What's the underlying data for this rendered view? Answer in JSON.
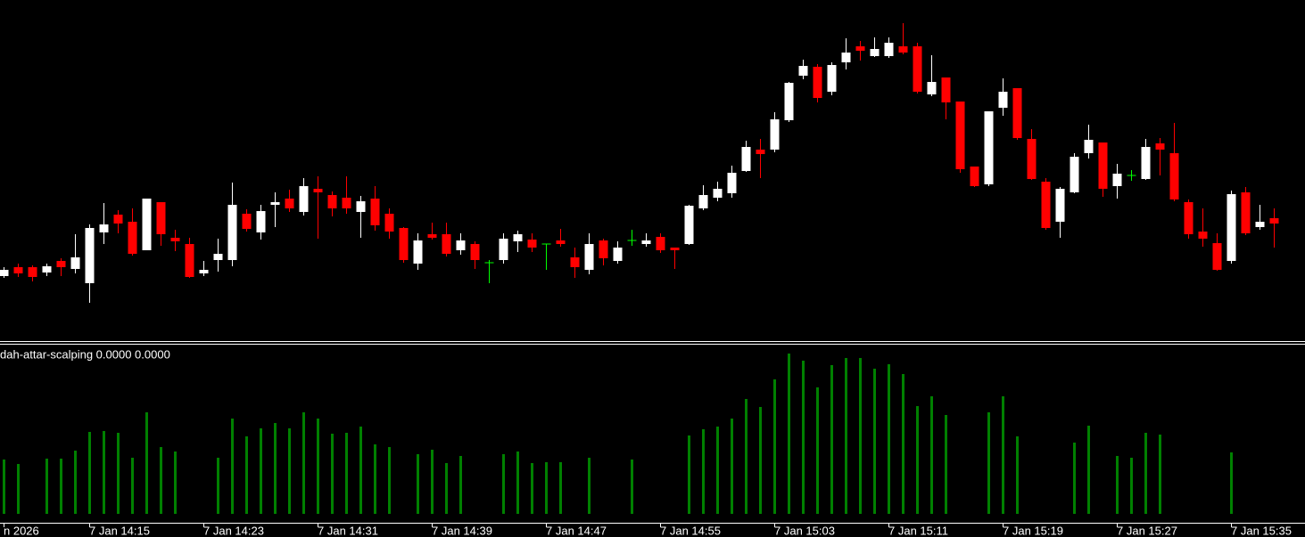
{
  "chart_data": [
    {
      "type": "candlestick",
      "categories": [
        "n 2026",
        null,
        null,
        null,
        null,
        null,
        "7 Jan 14:15",
        null,
        null,
        null,
        null,
        null,
        null,
        null,
        "7 Jan 14:23",
        null,
        null,
        null,
        null,
        null,
        null,
        null,
        "7 Jan 14:31",
        null,
        null,
        null,
        null,
        null,
        null,
        null,
        "7 Jan 14:39",
        null,
        null,
        null,
        null,
        null,
        null,
        null,
        "7 Jan 14:47",
        null,
        null,
        null,
        null,
        null,
        null,
        null,
        "7 Jan 14:55",
        null,
        null,
        null,
        null,
        null,
        null,
        null,
        "7 Jan 15:03",
        null,
        null,
        null,
        null,
        null,
        null,
        null,
        "7 Jan 15:11",
        null,
        null,
        null,
        null,
        null,
        null,
        null,
        "7 Jan 15:19",
        null,
        null,
        null,
        null,
        null,
        null,
        null,
        "7 Jan 15:27",
        null,
        null,
        null,
        null,
        null,
        null,
        null,
        "7 Jan 15:35",
        null,
        null,
        null
      ],
      "open": [
        90,
        100,
        100,
        94,
        107,
        98,
        82,
        139,
        159,
        151,
        119,
        173,
        133,
        126,
        93,
        108,
        108,
        160,
        139,
        170,
        177,
        162,
        188,
        181,
        178,
        162,
        177,
        160,
        144,
        104,
        137,
        137,
        119,
        126,
        105,
        108,
        129,
        131,
        126,
        130,
        111,
        97,
        130,
        107,
        130,
        126,
        134,
        122,
        126,
        166,
        178,
        183,
        208,
        232,
        232,
        265,
        315,
        325,
        297,
        330,
        348,
        337,
        337,
        348,
        348,
        294,
        313,
        286,
        213,
        193,
        279,
        301,
        244,
        196,
        151,
        184,
        228,
        240,
        191,
        203,
        199,
        239,
        228,
        173,
        140,
        127,
        107,
        184,
        145,
        155
      ],
      "high": [
        100,
        104,
        102,
        104,
        110,
        137,
        148,
        172,
        164,
        166,
        177,
        173,
        142,
        133,
        107,
        132,
        195,
        165,
        170,
        184,
        187,
        200,
        202,
        185,
        202,
        180,
        191,
        166,
        145,
        138,
        150,
        150,
        138,
        129,
        108,
        138,
        141,
        138,
        126,
        143,
        122,
        138,
        132,
        129,
        142,
        138,
        138,
        122,
        170,
        192,
        196,
        214,
        242,
        244,
        274,
        308,
        333,
        328,
        330,
        357,
        354,
        358,
        358,
        374,
        352,
        338,
        313,
        286,
        213,
        275,
        312,
        301,
        255,
        200,
        190,
        228,
        260,
        240,
        216,
        209,
        244,
        245,
        262,
        176,
        166,
        138,
        186,
        190,
        170,
        166
      ],
      "low": [
        88,
        89,
        84,
        90,
        90,
        93,
        60,
        126,
        138,
        113,
        119,
        124,
        118,
        88,
        90,
        95,
        101,
        140,
        131,
        145,
        162,
        158,
        132,
        157,
        160,
        133,
        141,
        132,
        105,
        97,
        131,
        112,
        114,
        98,
        82,
        104,
        117,
        117,
        97,
        123,
        88,
        92,
        102,
        104,
        124,
        123,
        116,
        98,
        125,
        164,
        174,
        178,
        207,
        200,
        229,
        263,
        311,
        285,
        293,
        322,
        332,
        336,
        335,
        339,
        295,
        292,
        266,
        206,
        190,
        191,
        270,
        243,
        198,
        142,
        133,
        183,
        222,
        179,
        177,
        197,
        198,
        203,
        174,
        132,
        123,
        96,
        104,
        136,
        142,
        122
      ],
      "close": [
        97,
        93,
        89,
        101,
        100,
        111,
        144,
        148,
        149,
        115,
        177,
        137,
        129,
        89,
        97,
        115,
        170,
        143,
        163,
        173,
        166,
        191,
        184,
        166,
        166,
        174,
        147,
        140,
        108,
        130,
        133,
        115,
        130,
        108,
        105,
        132,
        137,
        122,
        126,
        126,
        100,
        126,
        110,
        122,
        130,
        130,
        119,
        119,
        169,
        181,
        188,
        206,
        235,
        227,
        266,
        307,
        326,
        290,
        327,
        341,
        343,
        345,
        352,
        341,
        297,
        308,
        285,
        210,
        191,
        275,
        297,
        245,
        199,
        144,
        188,
        224,
        243,
        188,
        205,
        203,
        235,
        232,
        176,
        137,
        132,
        97,
        182,
        138,
        151,
        149
      ],
      "up_color": "#ffffff",
      "down_color": "#ff0000",
      "doji_color": "#00ff00",
      "ylim": [
        17,
        400
      ]
    },
    {
      "type": "histogram-indicator",
      "title": "dah-attar-scalping 0.0000 0.0000",
      "color": "#008000",
      "values": [
        61,
        56,
        null,
        62,
        62,
        71,
        92,
        93,
        91,
        63,
        114,
        75,
        70,
        null,
        null,
        63,
        107,
        87,
        96,
        102,
        96,
        114,
        107,
        90,
        91,
        98,
        78,
        75,
        null,
        67,
        72,
        57,
        65,
        null,
        null,
        67,
        70,
        57,
        58,
        58,
        null,
        63,
        null,
        null,
        61,
        null,
        null,
        null,
        88,
        95,
        98,
        107,
        129,
        120,
        151,
        180,
        172,
        142,
        167,
        175,
        175,
        163,
        168,
        157,
        121,
        132,
        111,
        null,
        null,
        114,
        132,
        87,
        null,
        null,
        null,
        80,
        99,
        null,
        65,
        63,
        91,
        89,
        null,
        null,
        null,
        null,
        69,
        null,
        null,
        null
      ],
      "ylim": [
        0,
        190
      ]
    }
  ]
}
